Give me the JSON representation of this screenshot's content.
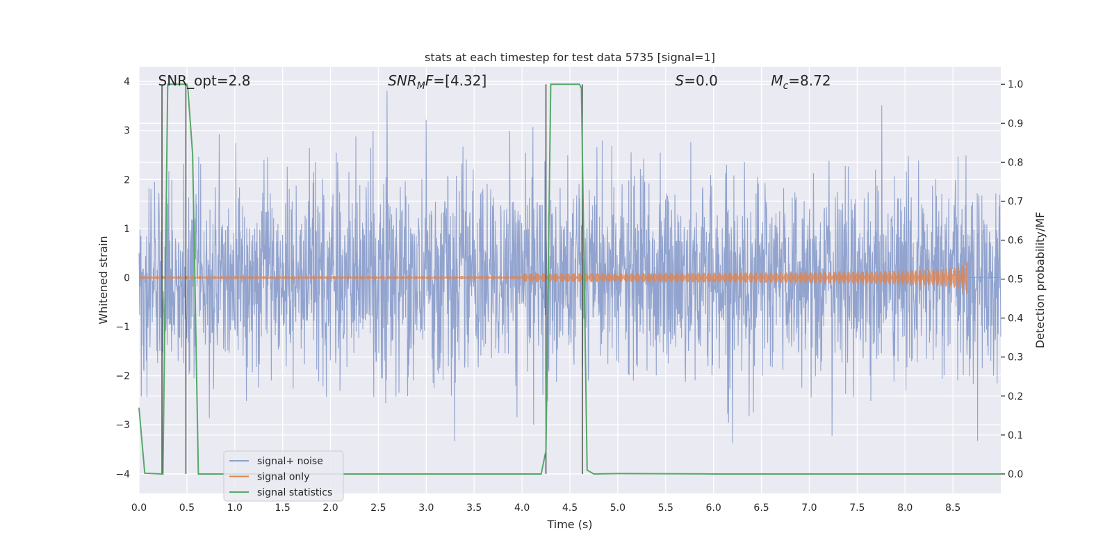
{
  "chart_data": {
    "type": "line",
    "title": "stats at each timestep for test data 5735 [signal=1]",
    "xlabel": "Time (s)",
    "ylabel_left": "Whitened strain",
    "ylabel_right": "Detection probability/MF",
    "xlim": [
      0,
      9.0
    ],
    "ylim_left": [
      -4.4,
      4.3
    ],
    "ylim_right": [
      -0.05,
      1.045
    ],
    "xticks": [
      "0.0",
      "0.5",
      "1.0",
      "1.5",
      "2.0",
      "2.5",
      "3.0",
      "3.5",
      "4.0",
      "4.5",
      "5.0",
      "5.5",
      "6.0",
      "6.5",
      "7.0",
      "7.5",
      "8.0",
      "8.5"
    ],
    "xtick_values": [
      0,
      0.5,
      1,
      1.5,
      2,
      2.5,
      3,
      3.5,
      4,
      4.5,
      5,
      5.5,
      6,
      6.5,
      7,
      7.5,
      8,
      8.5
    ],
    "yticks_left": [
      "4",
      "3",
      "2",
      "1",
      "0",
      "−1",
      "−2",
      "−3",
      "−4"
    ],
    "ytick_left_values": [
      4,
      3,
      2,
      1,
      0,
      -1,
      -2,
      -3,
      -4
    ],
    "yticks_right": [
      "1.0",
      "0.9",
      "0.8",
      "0.7",
      "0.6",
      "0.5",
      "0.4",
      "0.3",
      "0.2",
      "0.1",
      "0.0"
    ],
    "ytick_right_values": [
      1.0,
      0.9,
      0.8,
      0.7,
      0.6,
      0.5,
      0.4,
      0.3,
      0.2,
      0.1,
      0.0
    ],
    "grid": true,
    "legend_placement": "lower-left",
    "annotations": [
      {
        "text": "SNR_opt=2.8",
        "x": 0.2,
        "y": 4.0
      },
      {
        "text": "SNR",
        "sub": "M",
        "suffix": "F=[4.32]",
        "italic": true,
        "x": 2.6,
        "y": 4.0
      },
      {
        "text": "S",
        "suffix": "=0.0",
        "italic": true,
        "x": 5.6,
        "y": 4.0
      },
      {
        "text": "M",
        "sub": "c",
        "suffix": "=8.72",
        "italic": true,
        "x": 6.6,
        "y": 4.0
      }
    ],
    "series": [
      {
        "name": "signal+ noise",
        "color": "#8c9fcb",
        "axis": "left",
        "description_level": "noise band, typical amplitude ±1.6, peaks to about ±3.8",
        "x_range": [
          0,
          9.0
        ]
      },
      {
        "name": "signal only",
        "color": "#dd8452",
        "axis": "left",
        "chirp_end_x": 8.65,
        "chirp_peak_amplitude": 0.35
      },
      {
        "name": "signal statistics",
        "color": "#55a868",
        "axis": "right",
        "x": [
          0,
          0.06,
          0.24,
          0.25,
          0.3,
          0.32,
          0.5,
          0.51,
          0.56,
          0.62,
          1.0,
          2.0,
          3.0,
          4.0,
          4.2,
          4.25,
          4.3,
          4.6,
          4.62,
          4.68,
          4.75,
          5.0,
          6.0,
          7.0,
          8.0,
          9.0
        ],
        "y": [
          0.17,
          0.002,
          0.0,
          0.0,
          1.0,
          1.0,
          1.0,
          0.99,
          0.82,
          0.0,
          0.0,
          0.0,
          0.0,
          0.0,
          0.0,
          0.06,
          1.0,
          1.0,
          0.99,
          0.01,
          0.0,
          0.001,
          0.0,
          0.0,
          0.0,
          0.0
        ]
      }
    ],
    "vertical_lines": [
      0.24,
      0.49,
      4.25,
      4.63
    ],
    "vertical_line_color": "#4c4c4c"
  }
}
